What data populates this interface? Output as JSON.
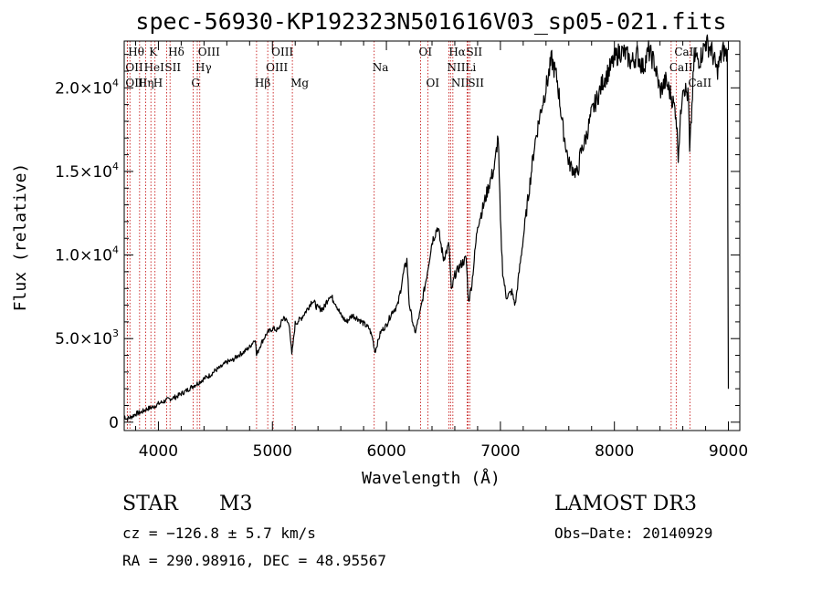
{
  "chart_data": {
    "type": "line",
    "title": "spec-56930-KP192323N501616V03_sp05-021.fits",
    "xlabel": "Wavelength (Å)",
    "ylabel": "Flux (relative)",
    "xlim": [
      3700,
      9100
    ],
    "ylim": [
      -500,
      22800
    ],
    "x_ticks": [
      4000,
      5000,
      6000,
      7000,
      8000,
      9000
    ],
    "x_tick_labels": [
      "4000",
      "5000",
      "6000",
      "7000",
      "8000",
      "9000"
    ],
    "y_ticks": [
      0,
      5000,
      10000,
      15000,
      20000
    ],
    "y_tick_labels": [
      {
        "mant": "0",
        "exp": ""
      },
      {
        "mant": "5.0×10",
        "exp": "3"
      },
      {
        "mant": "1.0×10",
        "exp": "4"
      },
      {
        "mant": "1.5×10",
        "exp": "4"
      },
      {
        "mant": "2.0×10",
        "exp": "4"
      }
    ],
    "series": [
      {
        "name": "spectrum",
        "x": [
          3700,
          3720,
          3760,
          3800,
          3850,
          3900,
          3950,
          4000,
          4050,
          4100,
          4150,
          4200,
          4250,
          4300,
          4350,
          4400,
          4450,
          4500,
          4550,
          4600,
          4650,
          4700,
          4750,
          4800,
          4850,
          4860,
          4900,
          4950,
          5000,
          5050,
          5100,
          5150,
          5170,
          5200,
          5250,
          5300,
          5350,
          5400,
          5450,
          5500,
          5550,
          5600,
          5650,
          5700,
          5750,
          5800,
          5850,
          5880,
          5900,
          5950,
          6000,
          6050,
          6100,
          6150,
          6180,
          6200,
          6250,
          6300,
          6350,
          6400,
          6450,
          6500,
          6550,
          6570,
          6600,
          6650,
          6700,
          6720,
          6750,
          6800,
          6850,
          6900,
          6950,
          6980,
          7000,
          7020,
          7050,
          7100,
          7130,
          7200,
          7250,
          7300,
          7350,
          7400,
          7450,
          7500,
          7550,
          7600,
          7650,
          7680,
          7700,
          7750,
          7800,
          7850,
          7900,
          7950,
          8000,
          8050,
          8100,
          8150,
          8200,
          8250,
          8300,
          8350,
          8400,
          8450,
          8500,
          8540,
          8560,
          8600,
          8650,
          8660,
          8700,
          8750,
          8800,
          8850,
          8900,
          8950,
          8990,
          9000
        ],
        "y": [
          400,
          200,
          300,
          500,
          600,
          800,
          900,
          1100,
          1250,
          1400,
          1500,
          1700,
          1900,
          2150,
          2350,
          2600,
          2800,
          3100,
          3300,
          3600,
          3700,
          4000,
          4200,
          4500,
          5000,
          4000,
          4700,
          5300,
          5600,
          5500,
          6300,
          5800,
          4000,
          5900,
          6200,
          6700,
          7300,
          6800,
          6800,
          7600,
          7200,
          6400,
          6000,
          6400,
          6200,
          5900,
          5600,
          5000,
          4200,
          5400,
          5800,
          6600,
          7000,
          8900,
          9700,
          7100,
          5300,
          6700,
          8600,
          10800,
          11700,
          9800,
          10600,
          7800,
          8800,
          9400,
          9800,
          7200,
          8300,
          11800,
          12900,
          14200,
          15300,
          17200,
          12000,
          9000,
          7500,
          7800,
          7000,
          11000,
          13800,
          16600,
          18500,
          20000,
          21700,
          20400,
          17500,
          15500,
          15000,
          14900,
          16000,
          17000,
          18500,
          19400,
          20400,
          21000,
          21700,
          22200,
          22000,
          21500,
          22000,
          21200,
          22200,
          21500,
          19800,
          20400,
          19500,
          18500,
          16000,
          20300,
          19400,
          16000,
          21800,
          21700,
          22700,
          22300,
          21000,
          22200,
          22000,
          2000
        ]
      }
    ],
    "spectral_lines": [
      {
        "wl": 3750,
        "label": "Hθ",
        "row": 0
      },
      {
        "wl": 3727,
        "label": "OII",
        "row": 1
      },
      {
        "wl": 3727,
        "label": "OIII",
        "row": 2
      },
      {
        "wl": 3835,
        "label": "Hη",
        "row": 2
      },
      {
        "wl": 3889,
        "label": "HeI",
        "row": 1
      },
      {
        "wl": 3934,
        "label": "K",
        "row": 0
      },
      {
        "wl": 3970,
        "label": "H",
        "row": 2
      },
      {
        "wl": 4072,
        "label": "SII",
        "row": 1
      },
      {
        "wl": 4102,
        "label": "Hδ",
        "row": 0
      },
      {
        "wl": 4304,
        "label": "G",
        "row": 2
      },
      {
        "wl": 4341,
        "label": "Hγ",
        "row": 1
      },
      {
        "wl": 4363,
        "label": "OIII",
        "row": 0
      },
      {
        "wl": 4861,
        "label": "Hβ",
        "row": 2
      },
      {
        "wl": 4959,
        "label": "OIII",
        "row": 1
      },
      {
        "wl": 5007,
        "label": "OIII",
        "row": 0
      },
      {
        "wl": 5175,
        "label": "Mg",
        "row": 2
      },
      {
        "wl": 5893,
        "label": "Na",
        "row": 1
      },
      {
        "wl": 6300,
        "label": "OI",
        "row": 0
      },
      {
        "wl": 6364,
        "label": "OI",
        "row": 2
      },
      {
        "wl": 6548,
        "label": "NII",
        "row": 1
      },
      {
        "wl": 6563,
        "label": "Hα",
        "row": 0
      },
      {
        "wl": 6583,
        "label": "NII",
        "row": 2
      },
      {
        "wl": 6708,
        "label": "Li",
        "row": 1
      },
      {
        "wl": 6716,
        "label": "SII",
        "row": 0
      },
      {
        "wl": 6731,
        "label": "SII",
        "row": 2
      },
      {
        "wl": 8498,
        "label": "CaII",
        "row": 1
      },
      {
        "wl": 8542,
        "label": "CaII",
        "row": 0
      },
      {
        "wl": 8662,
        "label": "CaII",
        "row": 2
      }
    ]
  },
  "info": {
    "obj_class": "STAR",
    "subclass": "M3",
    "survey": "LAMOST DR3",
    "cz": "cz = −126.8 ± 5.7 km/s",
    "obs_date": "Obs−Date: 20140929",
    "radec": "RA = 290.98916, DEC =  48.95567"
  }
}
